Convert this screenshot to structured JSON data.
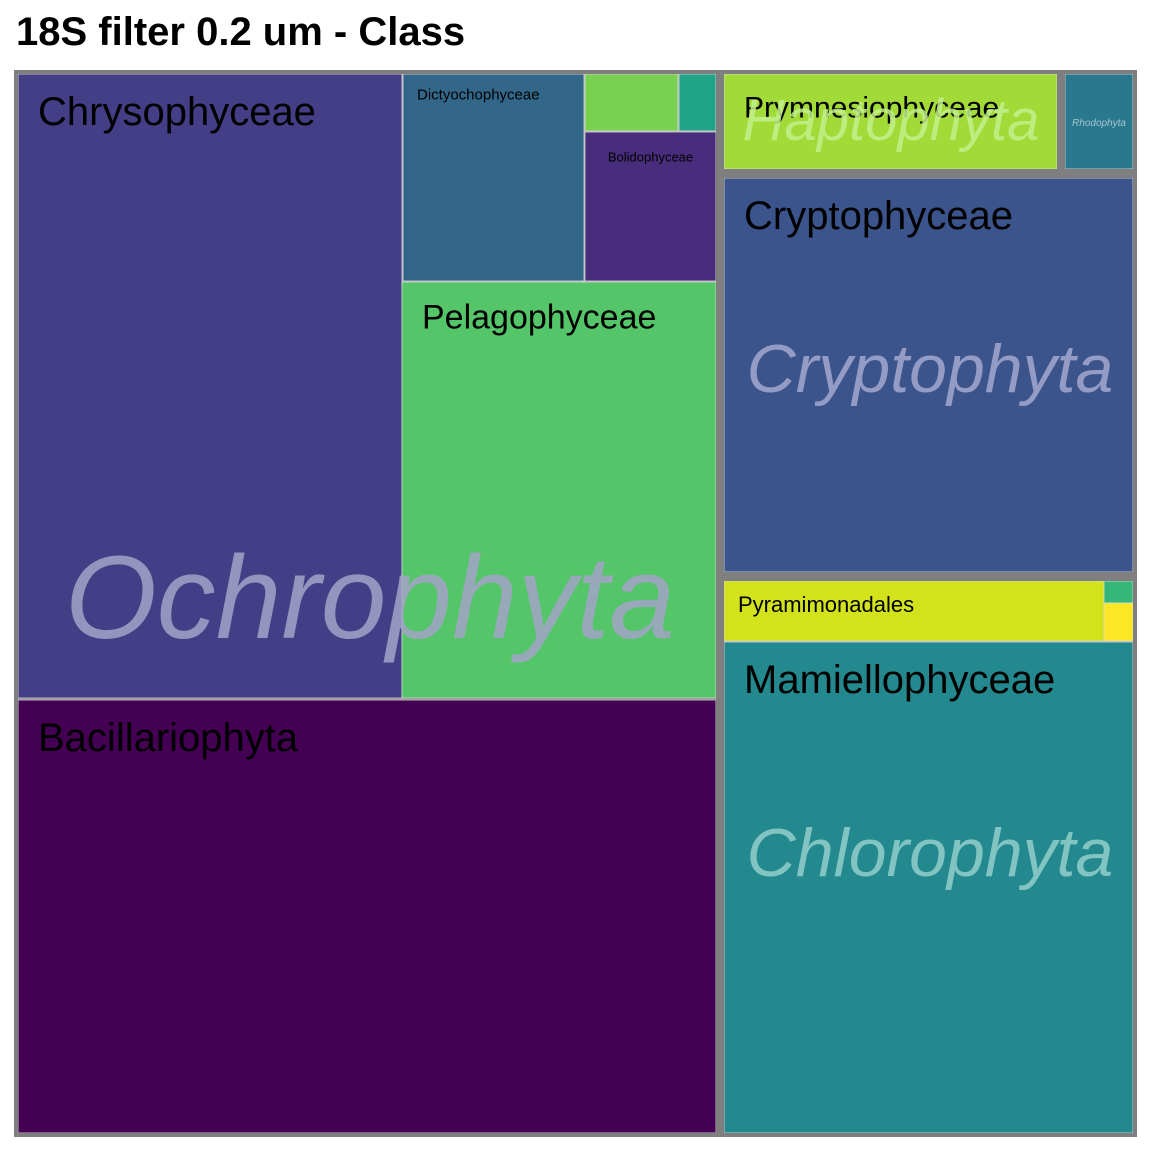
{
  "chart_data": {
    "type": "treemap",
    "title": "18S filter 0.2 um - Class",
    "groups": [
      {
        "name": "Ochrophyta",
        "label_color": "#A3A3C8",
        "classes": [
          {
            "name": "Chrysophyceae",
            "color": "#433E85"
          },
          {
            "name": "Bacillariophyta",
            "color": "#440154"
          },
          {
            "name": "Pelagophyceae",
            "color": "#54C568"
          },
          {
            "name": "Dictyochophyceae",
            "color": "#33678A"
          },
          {
            "name": "Bolidophyceae",
            "color": "#472D7B"
          },
          {
            "name": "",
            "color": "#7AD151"
          },
          {
            "name": "",
            "color": "#20A386"
          }
        ]
      },
      {
        "name": "Haptophyta",
        "label_color": "#C2EE8C",
        "classes": [
          {
            "name": "Prymnesiophyceae",
            "color": "#A2DA37"
          }
        ]
      },
      {
        "name": "",
        "label_color": "#A8B8C8",
        "classes": [
          {
            "name": "Rhodophyta",
            "color": "#2A788E"
          }
        ]
      },
      {
        "name": "Cryptophyta",
        "label_color": "#A4A9D0",
        "classes": [
          {
            "name": "Cryptophyceae",
            "color": "#3B548B"
          }
        ]
      },
      {
        "name": "Chlorophyta",
        "label_color": "#92CFCB",
        "classes": [
          {
            "name": "Mamiellophyceae",
            "color": "#23898E"
          },
          {
            "name": "Pyramimonadales",
            "color": "#D2E21B"
          },
          {
            "name": "",
            "color": "#35B779"
          },
          {
            "name": "",
            "color": "#FDE725"
          }
        ]
      }
    ]
  }
}
